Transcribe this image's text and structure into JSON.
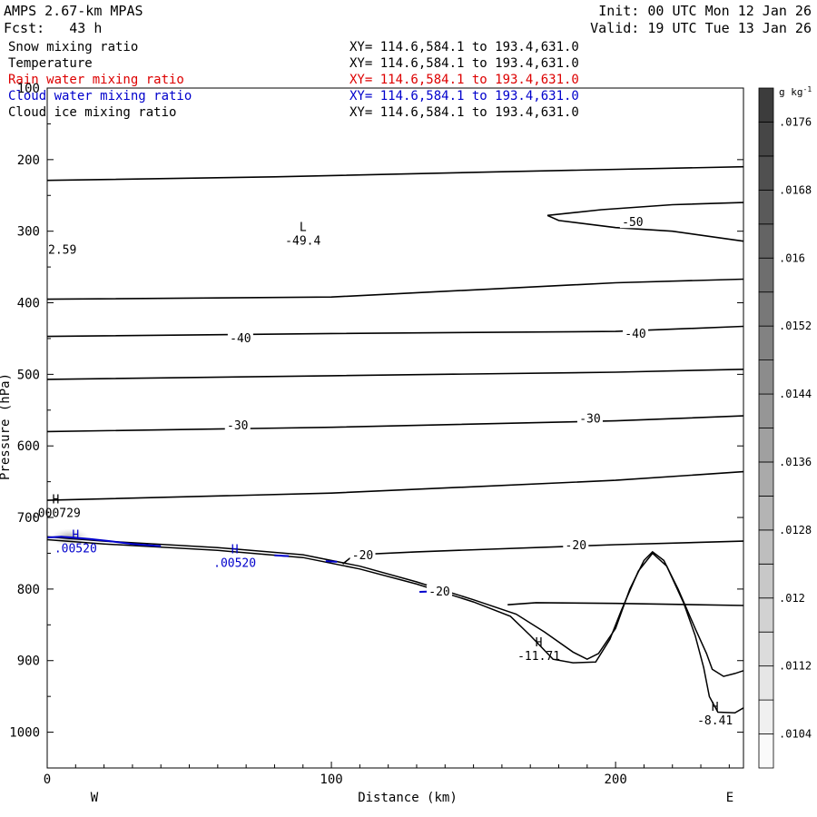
{
  "header": {
    "model": "AMPS 2.67-km MPAS",
    "fcst": "Fcst:   43 h",
    "init": "Init: 00 UTC Mon 12 Jan 26",
    "valid": "Valid: 19 UTC Tue 13 Jan 26"
  },
  "fields": [
    {
      "name": "Snow mixing ratio",
      "xy": "XY= 114.6,584.1 to 193.4,631.0",
      "color": "#000000"
    },
    {
      "name": "Temperature",
      "xy": "XY= 114.6,584.1 to 193.4,631.0",
      "color": "#000000"
    },
    {
      "name": "Rain water mixing ratio",
      "xy": "XY= 114.6,584.1 to 193.4,631.0",
      "color": "#dd0000"
    },
    {
      "name": "Cloud water mixing ratio",
      "xy": "XY= 114.6,584.1 to 193.4,631.0",
      "color": "#0000cc"
    },
    {
      "name": "Cloud ice mixing ratio",
      "xy": "XY= 114.6,584.1 to 193.4,631.0",
      "color": "#000000"
    }
  ],
  "chart_data": {
    "type": "cross-section contour",
    "xlabel": "Distance (km)",
    "ylabel": "Pressure (hPa)",
    "xlim": [
      0,
      245
    ],
    "ylim": [
      1050,
      100
    ],
    "x_ticks": [
      0,
      100,
      200
    ],
    "y_ticks": [
      100,
      200,
      300,
      400,
      500,
      600,
      700,
      800,
      900,
      1000
    ],
    "left_end_label": "W",
    "right_end_label": "E",
    "temperature_contours": [
      {
        "label": "",
        "points": [
          [
            0,
            229
          ],
          [
            80,
            224
          ],
          [
            160,
            217
          ],
          [
            245,
            210
          ]
        ]
      },
      {
        "label": "-50",
        "points": [
          [
            176,
            278
          ],
          [
            195,
            270
          ],
          [
            220,
            263
          ],
          [
            245,
            260
          ]
        ]
      },
      {
        "label": "-50",
        "points": [
          [
            176,
            278
          ],
          [
            180,
            285
          ],
          [
            200,
            295
          ],
          [
            220,
            300
          ],
          [
            245,
            314
          ]
        ]
      },
      {
        "label": "",
        "points": [
          [
            0,
            395
          ],
          [
            100,
            392
          ],
          [
            200,
            372
          ],
          [
            245,
            367
          ]
        ]
      },
      {
        "label": "-40",
        "points": [
          [
            0,
            447
          ],
          [
            100,
            443
          ],
          [
            200,
            440
          ],
          [
            245,
            433
          ]
        ]
      },
      {
        "label": "",
        "points": [
          [
            0,
            507
          ],
          [
            100,
            502
          ],
          [
            200,
            497
          ],
          [
            245,
            493
          ]
        ]
      },
      {
        "label": "-30",
        "points": [
          [
            0,
            580
          ],
          [
            100,
            574
          ],
          [
            200,
            565
          ],
          [
            245,
            558
          ]
        ]
      },
      {
        "label": "",
        "points": [
          [
            0,
            676
          ],
          [
            100,
            666
          ],
          [
            200,
            648
          ],
          [
            245,
            636
          ]
        ]
      },
      {
        "label": "-20",
        "points": [
          [
            104,
            765
          ],
          [
            108,
            752
          ],
          [
            130,
            748
          ],
          [
            200,
            738
          ],
          [
            245,
            733
          ]
        ]
      },
      {
        "label": "",
        "points": [
          [
            162,
            822
          ],
          [
            172,
            819
          ],
          [
            200,
            820
          ],
          [
            245,
            823
          ]
        ]
      }
    ],
    "contour_labels": [
      {
        "text": "-40",
        "x": 68,
        "p": 450
      },
      {
        "text": "-40",
        "x": 207,
        "p": 444
      },
      {
        "text": "-30",
        "x": 67,
        "p": 572
      },
      {
        "text": "-30",
        "x": 191,
        "p": 562
      },
      {
        "text": "-50",
        "x": 206,
        "p": 288
      },
      {
        "text": "-20",
        "x": 111,
        "p": 753
      },
      {
        "text": "-20",
        "x": 186,
        "p": 739
      },
      {
        "text": "-20",
        "x": 138,
        "p": 804
      }
    ],
    "extrema": [
      {
        "type": "L",
        "value": "-49.4",
        "x": 90,
        "p": 300,
        "color": "#000000"
      },
      {
        "type": "H",
        "value": "-11.71",
        "x": 173,
        "p": 880,
        "color": "#000000"
      },
      {
        "type": "H",
        "value": "-8.41",
        "x": 235,
        "p": 970,
        "color": "#000000"
      },
      {
        "type": "H",
        "value": ".000729",
        "x": 3,
        "p": 680,
        "color": "#000000"
      },
      {
        "type": "H",
        "value": ".00520",
        "x": 10,
        "p": 730,
        "color": "#0000cc"
      },
      {
        "type": "H",
        "value": ".00520",
        "x": 66,
        "p": 750,
        "color": "#0000cc"
      }
    ],
    "edge_value_label": {
      "text": "2.59",
      "x": 0,
      "p": 325
    },
    "terrain_upper": [
      [
        0,
        727
      ],
      [
        20,
        733
      ],
      [
        60,
        742
      ],
      [
        90,
        752
      ],
      [
        110,
        768
      ],
      [
        130,
        790
      ],
      [
        150,
        815
      ],
      [
        165,
        835
      ],
      [
        175,
        860
      ],
      [
        185,
        888
      ],
      [
        190,
        898
      ],
      [
        194,
        890
      ],
      [
        200,
        855
      ],
      [
        205,
        800
      ],
      [
        210,
        760
      ],
      [
        213,
        748
      ],
      [
        217,
        760
      ],
      [
        222,
        800
      ],
      [
        228,
        855
      ],
      [
        232,
        890
      ],
      [
        234,
        912
      ],
      [
        238,
        922
      ],
      [
        242,
        918
      ],
      [
        245,
        914
      ]
    ],
    "terrain_lower": [
      [
        0,
        731
      ],
      [
        20,
        737
      ],
      [
        60,
        746
      ],
      [
        90,
        756
      ],
      [
        110,
        772
      ],
      [
        130,
        793
      ],
      [
        150,
        818
      ],
      [
        163,
        838
      ],
      [
        170,
        865
      ],
      [
        178,
        898
      ],
      [
        185,
        903
      ],
      [
        193,
        902
      ],
      [
        198,
        870
      ],
      [
        202,
        830
      ],
      [
        208,
        775
      ],
      [
        213,
        750
      ],
      [
        218,
        768
      ],
      [
        224,
        820
      ],
      [
        228,
        865
      ],
      [
        231,
        910
      ],
      [
        233,
        950
      ],
      [
        236,
        972
      ],
      [
        242,
        973
      ],
      [
        245,
        966
      ]
    ],
    "cloud_water_segments": [
      [
        [
          0,
          728
        ],
        [
          5,
          727
        ],
        [
          15,
          730
        ],
        [
          22,
          733
        ],
        [
          30,
          737
        ],
        [
          40,
          740
        ]
      ],
      [
        [
          80,
          753
        ],
        [
          85,
          754
        ]
      ],
      [
        [
          98,
          761
        ],
        [
          102,
          762
        ]
      ],
      [
        [
          131,
          804
        ],
        [
          138,
          803
        ],
        [
          142,
          806
        ]
      ]
    ],
    "colorbar": {
      "unit": "g kg-1",
      "ticks": [
        ".0104",
        ".0112",
        ".012",
        ".0128",
        ".0136",
        ".0144",
        ".0152",
        ".016",
        ".0168",
        ".0176"
      ],
      "min": 0.01,
      "max": 0.018,
      "step": 0.0004
    }
  }
}
